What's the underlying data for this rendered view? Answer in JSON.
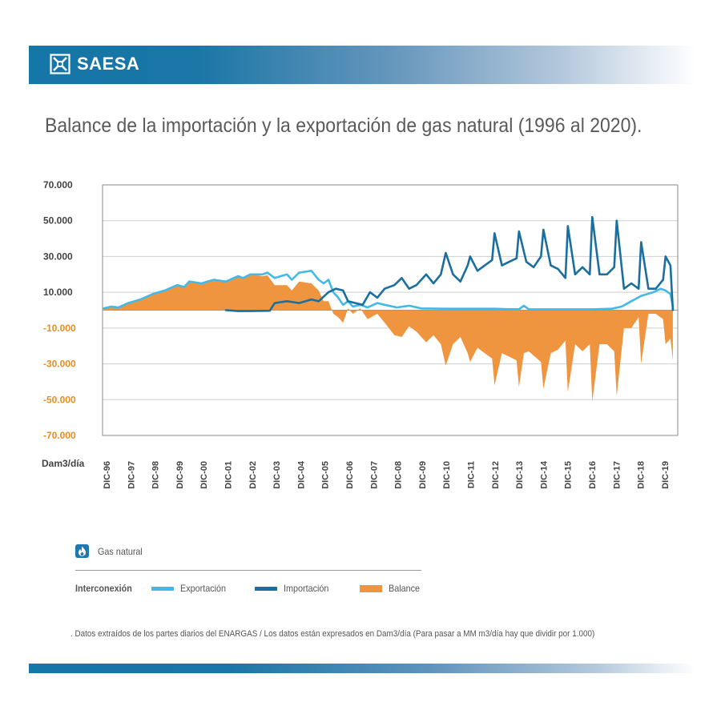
{
  "brand": {
    "name": "SAESA",
    "logo_icon": "saesa-x-logo"
  },
  "title": "Balance de la importación y la exportación de gas natural (1996 al 2020).",
  "legend": {
    "category": "Gas natural",
    "category_icon": "flame-icon",
    "group_label": "Interconexión",
    "items": [
      {
        "label": "Exportación",
        "color": "#43b9e8",
        "kind": "line"
      },
      {
        "label": "Importación",
        "color": "#1a6f9e",
        "kind": "line"
      },
      {
        "label": "Balance",
        "color": "#f0953f",
        "kind": "area"
      }
    ]
  },
  "footnote": ". Datos extraídos de los partes diarios del ENARGAS / Los datos están expresados en Dam3/día (Para pasar a MM m3/día hay que dividir por 1.000)",
  "colors": {
    "header": "#1576a8",
    "negative_ticks": "#e98d1f",
    "grid": "#cfcfcf"
  },
  "chart_data": {
    "type": "line",
    "title": "Balance de la importación y la exportación de gas natural (1996 al 2020).",
    "ylabel": "Dam3/día",
    "ylim": [
      -70000,
      70000
    ],
    "y_ticks": [
      {
        "value": 70000,
        "label": "70.000"
      },
      {
        "value": 50000,
        "label": "50.000"
      },
      {
        "value": 30000,
        "label": "30.000"
      },
      {
        "value": 10000,
        "label": "10.000"
      },
      {
        "value": -10000,
        "label": "-10.000"
      },
      {
        "value": -30000,
        "label": "-30.000"
      },
      {
        "value": -50000,
        "label": "-50.000"
      },
      {
        "value": -70000,
        "label": "-70.000"
      }
    ],
    "x_ticks": [
      "DIC-96",
      "DIC-97",
      "DIC-98",
      "DIC-99",
      "DIC-00",
      "DIC-01",
      "DIC-02",
      "DIC-03",
      "DIC-04",
      "DIC-05",
      "DIC-06",
      "DIC-07",
      "DIC-08",
      "DIC-09",
      "DIC-10",
      "DIC-11",
      "DIC-12",
      "DIC-13",
      "DIC-14",
      "DIC-15",
      "DIC-16",
      "DIC-17",
      "DIC-18",
      "DIC-19"
    ],
    "xlim": [
      1996.95,
      2020.5
    ],
    "grid": true,
    "series": [
      {
        "name": "Exportación",
        "color": "#43b9e8",
        "points": [
          [
            1997.0,
            1000
          ],
          [
            1997.3,
            2000
          ],
          [
            1997.6,
            1500
          ],
          [
            1998.0,
            4000
          ],
          [
            1998.5,
            6000
          ],
          [
            1999.0,
            9000
          ],
          [
            1999.5,
            11000
          ],
          [
            2000.0,
            14000
          ],
          [
            2000.3,
            13000
          ],
          [
            2000.5,
            16000
          ],
          [
            2001.0,
            15000
          ],
          [
            2001.5,
            17000
          ],
          [
            2002.0,
            16000
          ],
          [
            2002.5,
            19000
          ],
          [
            2002.7,
            18000
          ],
          [
            2003.0,
            20000
          ],
          [
            2003.5,
            20000
          ],
          [
            2003.7,
            21000
          ],
          [
            2004.0,
            18000
          ],
          [
            2004.5,
            20000
          ],
          [
            2004.7,
            17000
          ],
          [
            2005.0,
            21000
          ],
          [
            2005.5,
            22000
          ],
          [
            2005.8,
            17000
          ],
          [
            2006.0,
            15000
          ],
          [
            2006.2,
            17000
          ],
          [
            2006.4,
            10000
          ],
          [
            2006.6,
            7000
          ],
          [
            2006.8,
            3000
          ],
          [
            2007.0,
            5000
          ],
          [
            2007.2,
            2000
          ],
          [
            2007.5,
            3000
          ],
          [
            2007.8,
            1500
          ],
          [
            2008.2,
            4000
          ],
          [
            2008.5,
            3000
          ],
          [
            2009.0,
            1500
          ],
          [
            2009.5,
            2500
          ],
          [
            2010.0,
            1000
          ],
          [
            2011.0,
            800
          ],
          [
            2012.0,
            800
          ],
          [
            2013.0,
            800
          ],
          [
            2013.5,
            600
          ],
          [
            2014.0,
            500
          ],
          [
            2014.2,
            2500
          ],
          [
            2014.4,
            500
          ],
          [
            2015.0,
            500
          ],
          [
            2016.0,
            500
          ],
          [
            2017.0,
            500
          ],
          [
            2017.8,
            800
          ],
          [
            2018.2,
            2000
          ],
          [
            2018.6,
            5000
          ],
          [
            2019.0,
            8000
          ],
          [
            2019.5,
            10000
          ],
          [
            2019.8,
            12000
          ],
          [
            2020.0,
            11000
          ],
          [
            2020.2,
            9000
          ],
          [
            2020.3,
            2000
          ]
        ]
      },
      {
        "name": "Importación",
        "color": "#1a6f9e",
        "points": [
          [
            2002.0,
            0
          ],
          [
            2002.5,
            -500
          ],
          [
            2003.0,
            -500
          ],
          [
            2003.8,
            -300
          ],
          [
            2004.0,
            4000
          ],
          [
            2004.5,
            5000
          ],
          [
            2005.0,
            4000
          ],
          [
            2005.5,
            6000
          ],
          [
            2005.8,
            5000
          ],
          [
            2006.2,
            10000
          ],
          [
            2006.5,
            12000
          ],
          [
            2006.8,
            11000
          ],
          [
            2007.0,
            5000
          ],
          [
            2007.3,
            4000
          ],
          [
            2007.6,
            3000
          ],
          [
            2007.9,
            10000
          ],
          [
            2008.2,
            7000
          ],
          [
            2008.5,
            12000
          ],
          [
            2008.9,
            14000
          ],
          [
            2009.2,
            18000
          ],
          [
            2009.5,
            12000
          ],
          [
            2009.8,
            14000
          ],
          [
            2010.2,
            20000
          ],
          [
            2010.5,
            15000
          ],
          [
            2010.8,
            20000
          ],
          [
            2011.0,
            32000
          ],
          [
            2011.3,
            20000
          ],
          [
            2011.6,
            16000
          ],
          [
            2011.9,
            25000
          ],
          [
            2012.0,
            30000
          ],
          [
            2012.3,
            22000
          ],
          [
            2012.6,
            25000
          ],
          [
            2012.9,
            28000
          ],
          [
            2013.0,
            43000
          ],
          [
            2013.3,
            25000
          ],
          [
            2013.6,
            27000
          ],
          [
            2013.9,
            29000
          ],
          [
            2014.0,
            44000
          ],
          [
            2014.3,
            27000
          ],
          [
            2014.6,
            24000
          ],
          [
            2014.9,
            30000
          ],
          [
            2015.0,
            45000
          ],
          [
            2015.3,
            25000
          ],
          [
            2015.6,
            23000
          ],
          [
            2015.9,
            18000
          ],
          [
            2016.0,
            47000
          ],
          [
            2016.3,
            20000
          ],
          [
            2016.6,
            24000
          ],
          [
            2016.9,
            20000
          ],
          [
            2017.0,
            52000
          ],
          [
            2017.3,
            20000
          ],
          [
            2017.6,
            20000
          ],
          [
            2017.9,
            24000
          ],
          [
            2018.0,
            50000
          ],
          [
            2018.3,
            12000
          ],
          [
            2018.6,
            15000
          ],
          [
            2018.9,
            12000
          ],
          [
            2019.0,
            38000
          ],
          [
            2019.3,
            12000
          ],
          [
            2019.6,
            12000
          ],
          [
            2019.9,
            17000
          ],
          [
            2020.0,
            30000
          ],
          [
            2020.2,
            25000
          ],
          [
            2020.3,
            0
          ]
        ]
      },
      {
        "name": "Balance",
        "color": "#f0953f",
        "points": [
          [
            1997.0,
            1000
          ],
          [
            1997.3,
            2000
          ],
          [
            1997.6,
            1500
          ],
          [
            1998.0,
            4000
          ],
          [
            1998.5,
            6000
          ],
          [
            1999.0,
            9000
          ],
          [
            1999.5,
            11000
          ],
          [
            2000.0,
            14000
          ],
          [
            2000.3,
            13000
          ],
          [
            2000.5,
            16000
          ],
          [
            2001.0,
            15000
          ],
          [
            2001.5,
            17000
          ],
          [
            2002.0,
            16000
          ],
          [
            2002.5,
            19000
          ],
          [
            2002.7,
            18000
          ],
          [
            2003.0,
            20000
          ],
          [
            2003.5,
            19000
          ],
          [
            2003.7,
            19500
          ],
          [
            2004.0,
            14000
          ],
          [
            2004.5,
            14000
          ],
          [
            2004.7,
            11000
          ],
          [
            2005.0,
            16000
          ],
          [
            2005.5,
            15000
          ],
          [
            2005.8,
            11000
          ],
          [
            2006.0,
            5000
          ],
          [
            2006.2,
            5000
          ],
          [
            2006.4,
            -2000
          ],
          [
            2006.6,
            -4000
          ],
          [
            2006.8,
            -7000
          ],
          [
            2007.0,
            1000
          ],
          [
            2007.2,
            -2000
          ],
          [
            2007.5,
            1000
          ],
          [
            2007.8,
            -5000
          ],
          [
            2008.2,
            -2000
          ],
          [
            2008.5,
            -7000
          ],
          [
            2008.9,
            -14000
          ],
          [
            2009.2,
            -15000
          ],
          [
            2009.5,
            -9000
          ],
          [
            2009.8,
            -12000
          ],
          [
            2010.2,
            -18000
          ],
          [
            2010.5,
            -14000
          ],
          [
            2010.8,
            -19000
          ],
          [
            2011.0,
            -31000
          ],
          [
            2011.3,
            -19000
          ],
          [
            2011.6,
            -15000
          ],
          [
            2011.9,
            -24000
          ],
          [
            2012.0,
            -29000
          ],
          [
            2012.3,
            -21000
          ],
          [
            2012.6,
            -24000
          ],
          [
            2012.9,
            -27000
          ],
          [
            2013.0,
            -42000
          ],
          [
            2013.3,
            -24000
          ],
          [
            2013.6,
            -26000
          ],
          [
            2013.9,
            -28000
          ],
          [
            2014.0,
            -43000
          ],
          [
            2014.2,
            -24000
          ],
          [
            2014.4,
            -23000
          ],
          [
            2014.9,
            -29000
          ],
          [
            2015.0,
            -44000
          ],
          [
            2015.3,
            -24000
          ],
          [
            2015.6,
            -22000
          ],
          [
            2015.9,
            -17000
          ],
          [
            2016.0,
            -46000
          ],
          [
            2016.3,
            -19000
          ],
          [
            2016.6,
            -23000
          ],
          [
            2016.9,
            -19000
          ],
          [
            2017.0,
            -51000
          ],
          [
            2017.3,
            -19000
          ],
          [
            2017.6,
            -19000
          ],
          [
            2017.9,
            -23000
          ],
          [
            2018.0,
            -48000
          ],
          [
            2018.3,
            -10000
          ],
          [
            2018.6,
            -10000
          ],
          [
            2018.9,
            -4000
          ],
          [
            2019.0,
            -30000
          ],
          [
            2019.3,
            -2000
          ],
          [
            2019.6,
            -2000
          ],
          [
            2019.9,
            -5000
          ],
          [
            2020.0,
            -19000
          ],
          [
            2020.2,
            -16000
          ],
          [
            2020.3,
            -28000
          ]
        ]
      }
    ]
  }
}
